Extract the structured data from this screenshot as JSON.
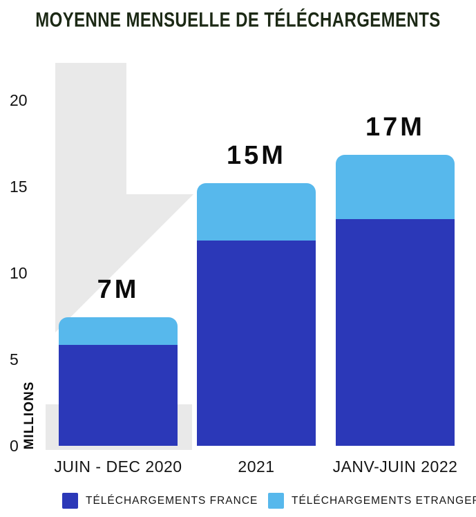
{
  "title": "MOYENNE MENSUELLE DE TÉLÉCHARGEMENTS",
  "colors": {
    "france": "#2B38B8",
    "etranger": "#57B8EC",
    "decor": "#E9E9E9",
    "title_text": "#1C2915"
  },
  "y_axis": {
    "title": "MILLIONS",
    "ticks": [
      {
        "label": "20",
        "value": 20
      },
      {
        "label": "15",
        "value": 15
      },
      {
        "label": "10",
        "value": 10
      },
      {
        "label": "5",
        "value": 5
      },
      {
        "label": "0",
        "value": 0
      }
    ]
  },
  "legend": {
    "items": [
      {
        "label": "TÉLÉCHARGEMENTS FRANCE",
        "color_key": "france"
      },
      {
        "label": "TÉLÉCHARGEMENTS ETRANGER",
        "color_key": "etranger"
      }
    ]
  },
  "chart_data": {
    "type": "bar",
    "stacked": true,
    "title": "MOYENNE MENSUELLE DE TÉLÉCHARGEMENTS",
    "categories": [
      "JUIN - DEC 2020",
      "2021",
      "JANV-JUIN 2022"
    ],
    "series": [
      {
        "name": "TÉLÉCHARGEMENTS FRANCE",
        "color": "#2B38B8",
        "values": [
          5.8,
          11.8,
          13.0
        ]
      },
      {
        "name": "TÉLÉCHARGEMENTS ETRANGER",
        "color": "#57B8EC",
        "values": [
          1.6,
          3.3,
          3.7
        ]
      }
    ],
    "totals": [
      7.4,
      15.1,
      16.7
    ],
    "total_labels": [
      "7M",
      "15M",
      "17M"
    ],
    "ylabel": "MILLIONS",
    "ylim": [
      0,
      22
    ],
    "yticks": [
      0,
      5,
      10,
      15,
      20
    ],
    "grid": false,
    "legend_position": "bottom"
  }
}
